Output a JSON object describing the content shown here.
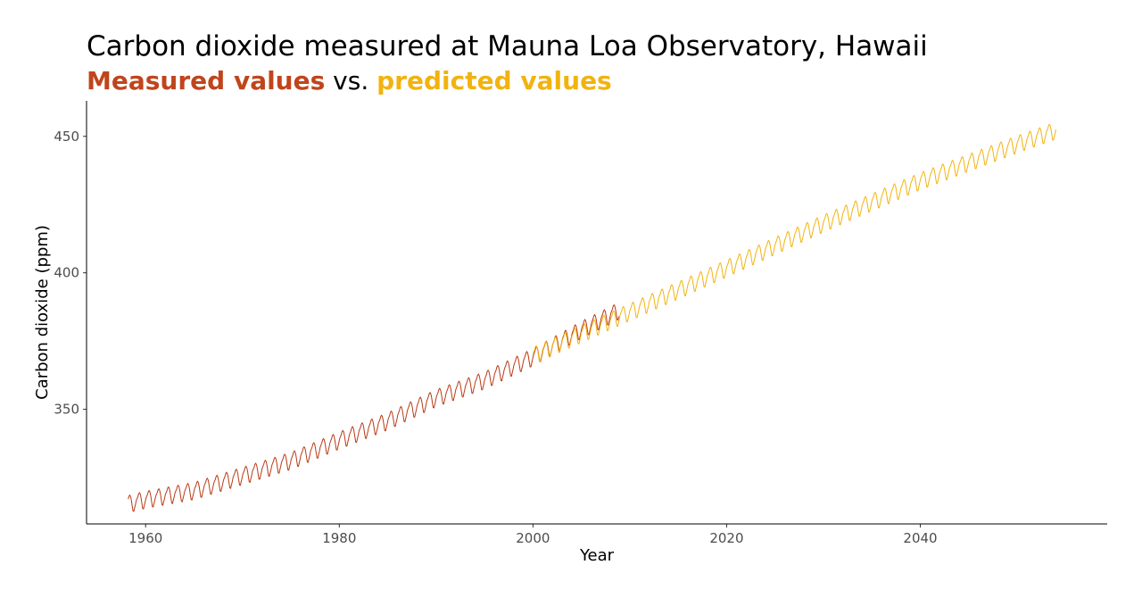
{
  "chart_data": {
    "type": "line",
    "title": "Carbon dioxide measured at Mauna Loa Observatory, Hawaii",
    "subtitle": {
      "part1": "Measured values",
      "part2": " vs. ",
      "part3": "predicted values"
    },
    "xlabel": "Year",
    "ylabel": "Carbon dioxide (ppm)",
    "xlim": [
      1953.9,
      2059.3
    ],
    "ylim": [
      308,
      463
    ],
    "xticks": [
      1960,
      1980,
      2000,
      2020,
      2040
    ],
    "yticks": [
      350,
      400,
      450
    ],
    "grid": false,
    "legend": "none",
    "seasonal_cycle": [
      0.6,
      1.3,
      1.9,
      2.9,
      3.2,
      2.6,
      1.1,
      -1.0,
      -2.9,
      -3.1,
      -1.9,
      -0.8
    ],
    "series": [
      {
        "name": "Measured values",
        "color": "#b83a16",
        "start": 1958.2,
        "end": 2008.9,
        "trend": [
          [
            1958,
            315.0
          ],
          [
            1960,
            316.8
          ],
          [
            1965,
            320.0
          ],
          [
            1970,
            325.5
          ],
          [
            1975,
            331.0
          ],
          [
            1980,
            338.5
          ],
          [
            1985,
            345.5
          ],
          [
            1990,
            354.0
          ],
          [
            1995,
            360.5
          ],
          [
            2000,
            369.0
          ],
          [
            2005,
            379.0
          ],
          [
            2008.9,
            386.0
          ]
        ]
      },
      {
        "name": "predicted values",
        "color": "#f2b30f",
        "start": 2000.0,
        "end": 2054.0,
        "trend": [
          [
            2000,
            369.5
          ],
          [
            2010,
            385.5
          ],
          [
            2020,
            401.5
          ],
          [
            2030,
            418.0
          ],
          [
            2040,
            433.5
          ],
          [
            2050,
            447.0
          ],
          [
            2054,
            452.0
          ]
        ]
      }
    ]
  }
}
